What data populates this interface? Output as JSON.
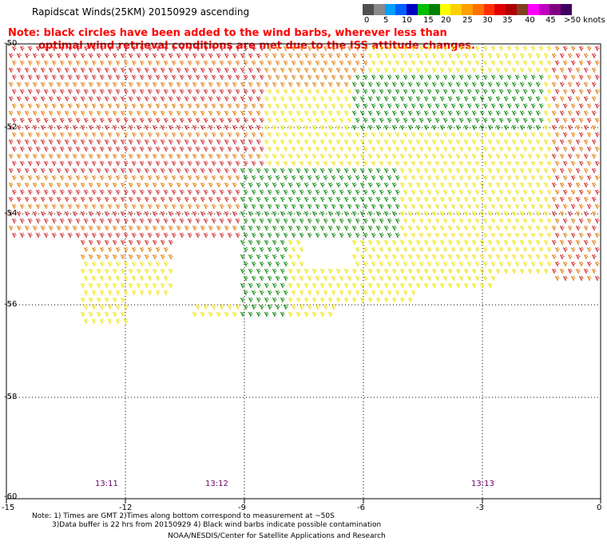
{
  "title": "Rapidscat Winds(25KM) 20150929 ascending",
  "note_line1": "Note: black circles have been added to the wind barbs, wherever less than",
  "note_line2": "optimal wind retrieval conditions are met due to the ISS attitude changes.",
  "legend": {
    "labels": [
      "0",
      "5",
      "10",
      "15",
      "20",
      "25",
      "30",
      "35",
      "40",
      "45",
      ">50 knots"
    ],
    "colors": [
      "#505050",
      "#8a8a8a",
      "#00a0ff",
      "#0060ff",
      "#0000c0",
      "#00c000",
      "#008000",
      "#ffff00",
      "#ffd000",
      "#ffa000",
      "#ff7000",
      "#ff3000",
      "#e00000",
      "#b00000",
      "#804020",
      "#ff00ff",
      "#c000c0",
      "#800080",
      "#400060"
    ]
  },
  "axes": {
    "lat_labels": [
      "-50",
      "-52",
      "-54",
      "-56",
      "-58",
      "-60"
    ],
    "lon_labels": [
      "-15",
      "-12",
      "-9",
      "-6",
      "-3",
      "0"
    ]
  },
  "times": [
    "13:11",
    "13:12",
    "13:13"
  ],
  "footer": {
    "line1": "Note: 1) Times are GMT 2)Times along bottom correspond to measurement at ~50S",
    "line2": "3)Data buffer is 22 hrs from 20150929 4) Black wind barbs indicate possible contamination",
    "line3": "NOAA/NESDIS/Center for Satellite Applications and Research"
  },
  "colors": {
    "yellow": "#f0e000",
    "gold": "#e8b000",
    "orange": "#e07800",
    "red": "#d02020",
    "green": "#008800"
  }
}
